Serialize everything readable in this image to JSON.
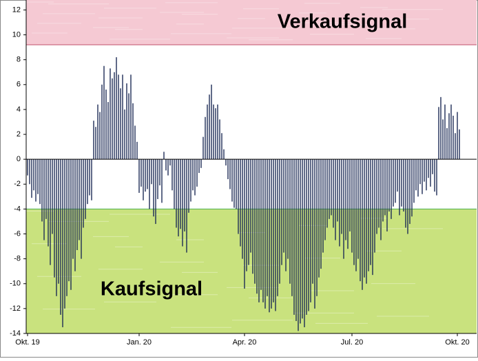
{
  "chart_data": {
    "type": "bar",
    "color": "#1c2b55",
    "ylim": [
      -14,
      12.8
    ],
    "yticks": [
      -14,
      -12,
      -10,
      -8,
      -6,
      -4,
      -2,
      0,
      2,
      4,
      6,
      8,
      10,
      12
    ],
    "grid": false,
    "bands": [
      {
        "label": "Verkaufsignal",
        "from": 9.2,
        "to": 12.8,
        "color": "#f5c9d3",
        "edge": "#c0506a"
      },
      {
        "label": "Kaufsignal",
        "from": -14,
        "to": -4,
        "color": "#c9e27e",
        "edge": "#4caf50"
      }
    ],
    "categories": [
      "Okt. 19",
      null,
      null,
      null,
      null,
      null,
      null,
      null,
      null,
      null,
      null,
      null,
      null,
      null,
      null,
      null,
      null,
      null,
      null,
      null,
      null,
      null,
      null,
      null,
      null,
      null,
      null,
      null,
      null,
      null,
      null,
      null,
      null,
      null,
      null,
      null,
      null,
      null,
      null,
      null,
      null,
      null,
      null,
      null,
      null,
      null,
      null,
      null,
      null,
      null,
      null,
      null,
      null,
      null,
      "Jan. 20",
      null,
      null,
      null,
      null,
      null,
      null,
      null,
      null,
      null,
      null,
      null,
      null,
      null,
      null,
      null,
      null,
      null,
      null,
      null,
      null,
      null,
      null,
      null,
      null,
      null,
      null,
      null,
      null,
      null,
      null,
      null,
      null,
      null,
      null,
      null,
      null,
      null,
      null,
      null,
      null,
      null,
      null,
      null,
      null,
      null,
      null,
      null,
      null,
      null,
      null,
      "Apr. 20",
      null,
      null,
      null,
      null,
      null,
      null,
      null,
      null,
      null,
      null,
      null,
      null,
      null,
      null,
      null,
      null,
      null,
      null,
      null,
      null,
      null,
      null,
      null,
      null,
      null,
      null,
      null,
      null,
      null,
      null,
      null,
      null,
      null,
      null,
      null,
      null,
      null,
      null,
      null,
      null,
      null,
      null,
      null,
      null,
      null,
      null,
      null,
      null,
      null,
      null,
      null,
      "Jul. 20",
      null,
      null,
      null,
      null,
      null,
      null,
      null,
      null,
      null,
      null,
      null,
      null,
      null,
      null,
      null,
      null,
      null,
      null,
      null,
      null,
      null,
      null,
      null,
      null,
      null,
      null,
      null,
      null,
      null,
      null,
      null,
      null,
      null,
      null,
      null,
      null,
      null,
      null,
      null,
      null,
      null,
      null,
      null,
      null,
      null,
      null,
      null,
      null,
      null,
      null,
      "Okt. 20",
      null
    ],
    "values": [
      -1.3,
      -2,
      -3.1,
      -2.5,
      -3.4,
      -2.8,
      -3.6,
      -5,
      -6.5,
      -4.8,
      -7,
      -8.5,
      -6,
      -9.5,
      -11,
      -10,
      -12.5,
      -13.5,
      -12,
      -11,
      -9.8,
      -10.5,
      -8,
      -9,
      -7.3,
      -6.5,
      -8,
      -5.5,
      -4.8,
      -3.6,
      -2.9,
      -3.3,
      3.1,
      2.6,
      4.4,
      3.8,
      6,
      7.5,
      5.6,
      4.6,
      7.3,
      6.5,
      7,
      8.2,
      6.8,
      5.7,
      6.8,
      4,
      6.1,
      5.3,
      6.8,
      4.5,
      2.7,
      1.4,
      -2.7,
      -2.2,
      -3.3,
      -2.6,
      -2.4,
      -4,
      -2,
      -4.6,
      -5.2,
      -3.2,
      -2.1,
      -3.5,
      0.6,
      -0.9,
      -1.3,
      -0.5,
      -2.5,
      -4,
      -5.5,
      -6.2,
      -5.6,
      -7,
      -5.8,
      -7.5,
      -4.3,
      -3.4,
      -2.5,
      -2.9,
      -2.2,
      -1.1,
      -0.7,
      1.8,
      3.4,
      4.4,
      5.2,
      6,
      4.4,
      4.1,
      4.4,
      3.2,
      2.1,
      0.8,
      -0.5,
      -1.6,
      -2.4,
      -3.4,
      -3.9,
      -4,
      -6,
      -7,
      -8,
      -10.4,
      -9,
      -8.5,
      -7.5,
      -9.2,
      -10,
      -10.8,
      -11.5,
      -10.5,
      -11.5,
      -12,
      -11,
      -12.3,
      -12,
      -11.5,
      -12.2,
      -11,
      -10,
      -8.5,
      -7.5,
      -9,
      -8,
      -10,
      -11,
      -12.5,
      -13,
      -13.8,
      -13.2,
      -12.8,
      -13.5,
      -12.5,
      -12.2,
      -11.5,
      -10,
      -12,
      -11,
      -9.5,
      -8.8,
      -7.5,
      -6.5,
      -5.5,
      -4.8,
      -4.5,
      -5.5,
      -6.5,
      -5,
      -7,
      -6,
      -8,
      -6.5,
      -7.2,
      -5.8,
      -7.5,
      -8.5,
      -9,
      -8,
      -9.8,
      -10.5,
      -9.5,
      -10,
      -9,
      -8.5,
      -9.3,
      -7.5,
      -6,
      -5.5,
      -6.5,
      -5,
      -4.5,
      -5.8,
      -4.2,
      -4.8,
      -3.8,
      -3.5,
      -2.6,
      -4.5,
      -3.8,
      -4.2,
      -5.5,
      -6,
      -5.2,
      -4.6,
      -3.5,
      -2.5,
      -3,
      -2,
      -2.8,
      -1.8,
      -2.5,
      -1.5,
      -2.2,
      -1.2,
      -2.6,
      -2.9,
      4.2,
      5,
      3.2,
      4.4,
      2.5,
      3.7,
      4.4,
      3.5,
      2.1,
      3.8,
      2.4
    ]
  }
}
